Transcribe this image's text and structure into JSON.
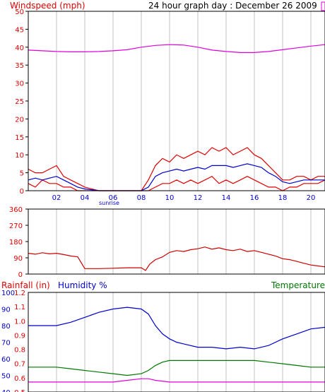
{
  "title": "24 hour graph day : December 26 2009",
  "colors": {
    "red": "#e00000",
    "blue": "#0000cc",
    "magenta": "#dd00dd",
    "green": "#007700",
    "darkred": "#cc0000",
    "grid": "#c0c0c0"
  },
  "chart_data": [
    {
      "type": "line",
      "id": "windspeed",
      "ylabel": "Windspeed (mph)",
      "yticks": [
        "0",
        "5",
        "10",
        "15",
        "20",
        "25",
        "30",
        "35",
        "40",
        "45",
        "50"
      ],
      "ylim": [
        0,
        50
      ],
      "xticks": [
        "02",
        "04",
        "06",
        "08",
        "10",
        "12",
        "14",
        "16",
        "18",
        "20"
      ],
      "xlim": [
        0,
        21
      ],
      "annotation": {
        "text": "sunrise",
        "x": 5.7
      },
      "grid": true,
      "series": [
        {
          "color": "magenta",
          "x": [
            0,
            1,
            2,
            3,
            4,
            5,
            6,
            7,
            8,
            9,
            10,
            11,
            12,
            13,
            14,
            15,
            16,
            17,
            18,
            19,
            20,
            21
          ],
          "values": [
            39.2,
            39,
            38.8,
            38.7,
            38.7,
            38.8,
            39,
            39.3,
            40,
            40.5,
            40.7,
            40.6,
            40,
            39.2,
            38.8,
            38.5,
            38.5,
            38.8,
            39.3,
            39.8,
            40.3,
            40.7
          ]
        },
        {
          "color": "red",
          "x": [
            0,
            0.5,
            1,
            1.5,
            2,
            2.5,
            3,
            3.5,
            4,
            5,
            6,
            7,
            8,
            8.5,
            9,
            9.5,
            10,
            10.5,
            11,
            11.5,
            12,
            12.5,
            13,
            13.5,
            14,
            14.5,
            15,
            15.5,
            16,
            16.5,
            17,
            17.5,
            18,
            18.5,
            19,
            19.5,
            20,
            20.5,
            21
          ],
          "values": [
            6,
            5,
            5,
            6,
            7,
            4,
            3,
            2,
            1,
            0,
            0,
            0,
            0,
            3,
            7,
            9,
            8,
            10,
            9,
            10,
            11,
            10,
            12,
            11,
            12,
            10,
            11,
            12,
            10,
            9,
            7,
            5,
            3,
            3,
            4,
            4,
            3,
            4,
            4
          ]
        },
        {
          "color": "red",
          "x": [
            0,
            0.5,
            1,
            1.5,
            2,
            2.5,
            3,
            3.5,
            4,
            5,
            6,
            7,
            8,
            8.5,
            9,
            9.5,
            10,
            10.5,
            11,
            11.5,
            12,
            12.5,
            13,
            13.5,
            14,
            14.5,
            15,
            15.5,
            16,
            16.5,
            17,
            17.5,
            18,
            18.5,
            19,
            19.5,
            20,
            20.5,
            21
          ],
          "values": [
            2,
            1,
            3,
            2,
            2,
            1,
            1,
            0,
            0,
            0,
            0,
            0,
            0,
            0,
            1,
            2,
            2,
            3,
            2,
            3,
            2,
            3,
            4,
            2,
            3,
            2,
            3,
            4,
            3,
            2,
            1,
            1,
            0,
            1,
            1,
            2,
            2,
            2,
            3
          ]
        },
        {
          "color": "blue",
          "x": [
            0,
            0.5,
            1,
            1.5,
            2,
            2.5,
            3,
            3.5,
            4,
            5,
            6,
            7,
            8,
            8.5,
            9,
            9.5,
            10,
            10.5,
            11,
            11.5,
            12,
            12.5,
            13,
            13.5,
            14,
            14.5,
            15,
            15.5,
            16,
            16.5,
            17,
            17.5,
            18,
            18.5,
            19,
            19.5,
            20,
            20.5,
            21
          ],
          "values": [
            3,
            3.5,
            3,
            3.5,
            4,
            3,
            2,
            1,
            0.5,
            0,
            0,
            0,
            0,
            1,
            4,
            5,
            5.5,
            6,
            5.5,
            6,
            6.5,
            6,
            7,
            7,
            7,
            6.5,
            7,
            7.5,
            7,
            6.5,
            5,
            4,
            2.5,
            2,
            2.5,
            3,
            3,
            3,
            3
          ]
        }
      ]
    },
    {
      "type": "line",
      "id": "direction",
      "yticks": [
        "0",
        "90",
        "180",
        "270",
        "360"
      ],
      "ylim": [
        0,
        360
      ],
      "xlim": [
        0,
        21
      ],
      "grid": true,
      "series": [
        {
          "color": "darkred",
          "x": [
            0,
            0.5,
            1,
            1.5,
            2,
            2.5,
            3,
            3.5,
            4,
            5,
            6,
            7,
            8,
            8.3,
            8.6,
            9,
            9.5,
            10,
            10.5,
            11,
            11.5,
            12,
            12.5,
            13,
            13.5,
            14,
            14.5,
            15,
            15.5,
            16,
            16.5,
            17,
            17.5,
            18,
            18.5,
            19,
            19.5,
            20,
            20.5,
            21
          ],
          "values": [
            115,
            110,
            118,
            112,
            115,
            108,
            100,
            95,
            30,
            30,
            32,
            35,
            35,
            20,
            55,
            80,
            95,
            120,
            130,
            125,
            135,
            140,
            150,
            138,
            145,
            135,
            130,
            138,
            125,
            130,
            120,
            110,
            100,
            85,
            80,
            70,
            60,
            50,
            45,
            40
          ]
        }
      ]
    },
    {
      "type": "line",
      "id": "rain-humidity-temp",
      "ylabels": {
        "left": "Rainfall (in)",
        "middle": "Humidity %",
        "right": "Temperature"
      },
      "humidity_ticks": [
        "100",
        "90",
        "80",
        "70",
        "60",
        "50",
        "40"
      ],
      "humidity_lim": [
        40,
        100
      ],
      "rain_ticks": [
        "1.2",
        "1.1",
        "1.0",
        "0.9",
        "0.8",
        "0.7",
        "0.6",
        "0.5"
      ],
      "rain_lim": [
        0.5,
        1.2
      ],
      "xlim": [
        0,
        21
      ],
      "grid": true,
      "series": [
        {
          "color": "blue",
          "axis": "humidity",
          "x": [
            0,
            1,
            2,
            3,
            4,
            5,
            6,
            7,
            8,
            8.5,
            9,
            9.5,
            10,
            10.5,
            11,
            12,
            13,
            14,
            15,
            16,
            17,
            18,
            19,
            20,
            21
          ],
          "values": [
            80,
            80,
            80,
            82,
            85,
            88,
            90,
            91,
            90,
            87,
            80,
            75,
            72,
            70,
            69,
            67,
            67,
            66,
            67,
            66,
            68,
            72,
            75,
            78,
            79
          ]
        },
        {
          "color": "green",
          "axis": "humidity",
          "x": [
            0,
            1,
            2,
            3,
            4,
            5,
            6,
            7,
            8,
            8.5,
            9,
            9.5,
            10,
            10.5,
            11,
            12,
            13,
            14,
            15,
            16,
            17,
            18,
            19,
            20,
            21
          ],
          "values": [
            55,
            55,
            55,
            54,
            53,
            52,
            51,
            50,
            51,
            53,
            56,
            58,
            59,
            59,
            59,
            59,
            59,
            59,
            59,
            59,
            58,
            57,
            56,
            55,
            55
          ]
        },
        {
          "color": "magenta",
          "axis": "humidity",
          "x": [
            0,
            1,
            2,
            3,
            4,
            5,
            6,
            7,
            8,
            8.5,
            9,
            10,
            11,
            12,
            13,
            14,
            15,
            16,
            17,
            18,
            19,
            20,
            21
          ],
          "values": [
            46,
            46,
            46,
            46,
            46,
            46,
            46,
            47,
            48,
            48,
            47,
            46,
            46,
            46,
            46,
            46,
            46,
            46,
            46,
            46,
            46,
            46,
            46
          ]
        }
      ]
    }
  ]
}
